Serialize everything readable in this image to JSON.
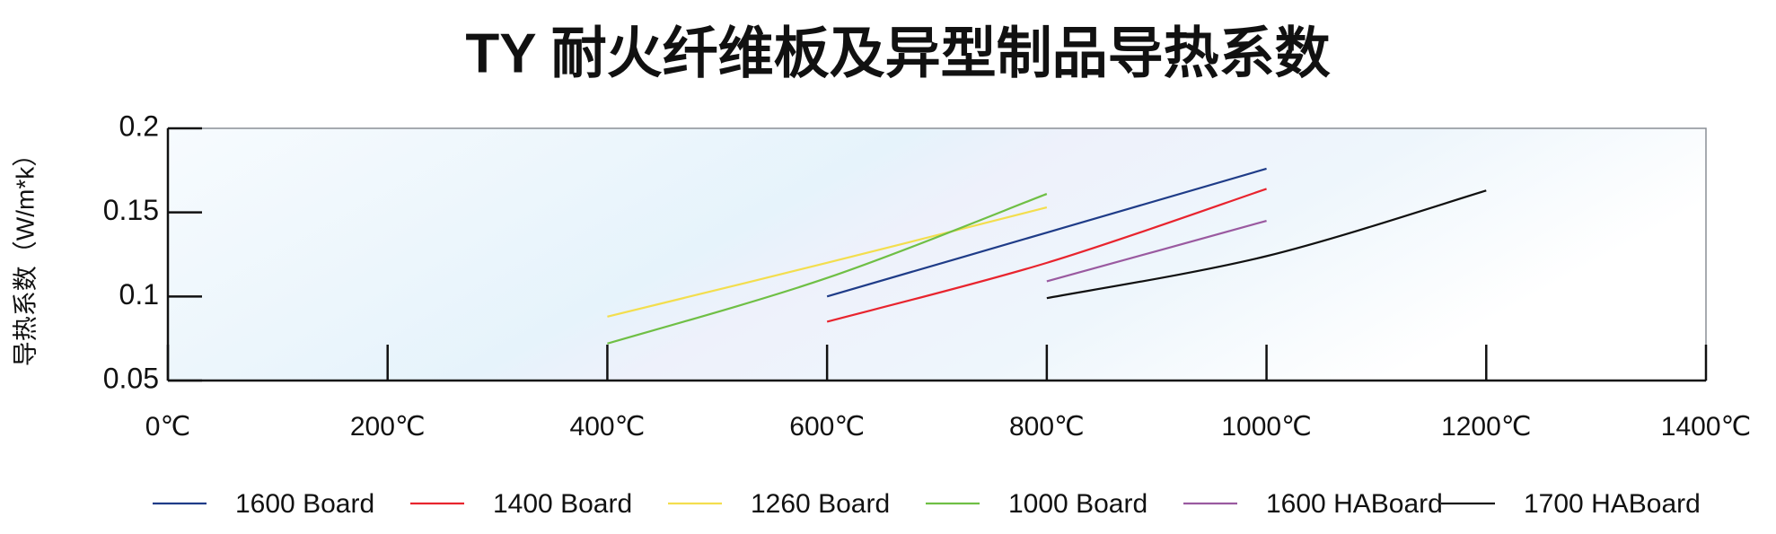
{
  "chart_data": {
    "type": "line",
    "title": "TY 耐火纤维板及异型制品导热系数",
    "y_label": "导热系数（W/m*k）",
    "xlim": [
      0,
      1400
    ],
    "xticks": [
      {
        "value": 0,
        "label": "0℃"
      },
      {
        "value": 200,
        "label": "200℃"
      },
      {
        "value": 400,
        "label": "400℃"
      },
      {
        "value": 600,
        "label": "600℃"
      },
      {
        "value": 800,
        "label": "800℃"
      },
      {
        "value": 1000,
        "label": "1000℃"
      },
      {
        "value": 1200,
        "label": "1200℃"
      },
      {
        "value": 1400,
        "label": "1400℃"
      }
    ],
    "ylim": [
      0.05,
      0.2
    ],
    "yticks": [
      0.05,
      0.1,
      0.15,
      0.2
    ],
    "series": [
      {
        "name": "1600 Board",
        "color": "#1f3c88",
        "x": [
          600,
          800,
          1000
        ],
        "values": [
          0.1,
          0.138,
          0.176
        ]
      },
      {
        "name": "1400 Board",
        "color": "#e8242e",
        "x": [
          600,
          800,
          1000
        ],
        "values": [
          0.085,
          0.12,
          0.164
        ]
      },
      {
        "name": "1260 Board",
        "color": "#f3de4e",
        "x": [
          400,
          600,
          800
        ],
        "values": [
          0.088,
          0.12,
          0.153
        ]
      },
      {
        "name": "1000 Board",
        "color": "#6fbf45",
        "x": [
          400,
          600,
          800
        ],
        "values": [
          0.072,
          0.111,
          0.161
        ]
      },
      {
        "name": "1600 HABoard",
        "color": "#9a5aa0",
        "x": [
          800,
          1000
        ],
        "values": [
          0.109,
          0.145
        ]
      },
      {
        "name": "1700 HABoard",
        "color": "#111111",
        "x": [
          800,
          1000,
          1200
        ],
        "values": [
          0.099,
          0.124,
          0.163
        ]
      }
    ]
  }
}
